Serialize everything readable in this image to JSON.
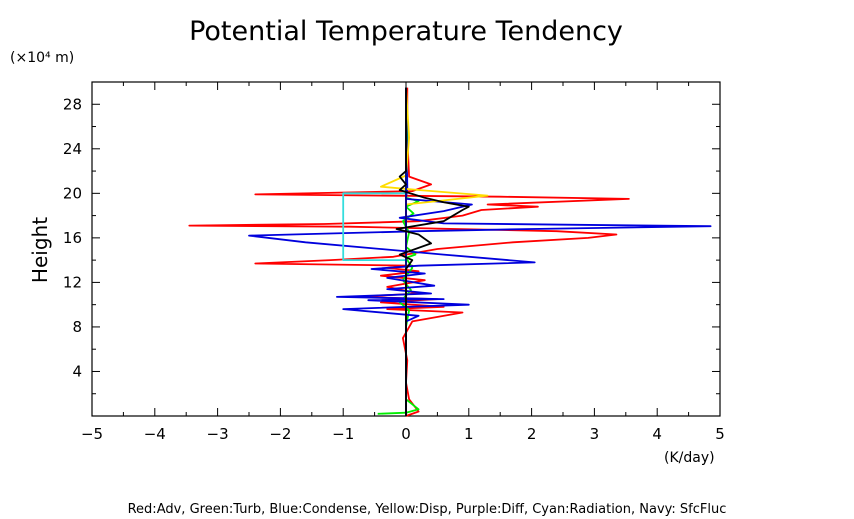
{
  "chart_data": {
    "type": "line",
    "title": "Potential Temperature Tendency",
    "ylabel": "Height",
    "y_unit": "(×10⁴ m)",
    "xlabel": "(K/day)",
    "xlim": [
      -5,
      5
    ],
    "ylim": [
      0,
      30
    ],
    "x_ticks": [
      "−5",
      "−4",
      "−3",
      "−2",
      "−1",
      "0",
      "1",
      "2",
      "3",
      "4",
      "5"
    ],
    "y_ticks": [
      "4",
      "8",
      "12",
      "16",
      "20",
      "24",
      "28"
    ],
    "grid": false,
    "legend_text": "Red:Adv, Green:Turb, Blue:Condense, Yellow:Disp, Purple:Diff, Cyan:Radiation, Navy: SfcFluc",
    "series": [
      {
        "name": "Red:Adv",
        "color": "#ff0000",
        "points": [
          [
            0.0,
            0
          ],
          [
            0.2,
            0.4
          ],
          [
            0.05,
            1.5
          ],
          [
            0.0,
            3
          ],
          [
            0.02,
            5
          ],
          [
            -0.05,
            7
          ],
          [
            0.1,
            8.5
          ],
          [
            0.9,
            9.3
          ],
          [
            -0.3,
            9.6
          ],
          [
            0.6,
            9.8
          ],
          [
            -0.4,
            10.2
          ],
          [
            0.5,
            10.5
          ],
          [
            -0.8,
            10.7
          ],
          [
            0.2,
            11
          ],
          [
            -0.3,
            11.6
          ],
          [
            0.3,
            12.2
          ],
          [
            -0.4,
            12.6
          ],
          [
            0.2,
            13.0
          ],
          [
            -0.3,
            13.3
          ],
          [
            0.1,
            13.5
          ],
          [
            -2.4,
            13.7
          ],
          [
            -1.2,
            14.0
          ],
          [
            -0.2,
            14.3
          ],
          [
            0.5,
            15.0
          ],
          [
            1.7,
            15.6
          ],
          [
            2.9,
            16.0
          ],
          [
            3.35,
            16.3
          ],
          [
            2.4,
            16.6
          ],
          [
            0.8,
            16.8
          ],
          [
            -0.9,
            17.0
          ],
          [
            -3.45,
            17.1
          ],
          [
            -1.3,
            17.25
          ],
          [
            0.2,
            17.5
          ],
          [
            0.9,
            18.0
          ],
          [
            1.2,
            18.5
          ],
          [
            2.1,
            18.8
          ],
          [
            1.3,
            19.0
          ],
          [
            3.55,
            19.5
          ],
          [
            1.5,
            19.7
          ],
          [
            -2.4,
            19.9
          ],
          [
            0.1,
            20.2
          ],
          [
            0.4,
            20.8
          ],
          [
            0.2,
            21.2
          ],
          [
            0.05,
            21.5
          ],
          [
            0.02,
            25
          ],
          [
            0.02,
            29.5
          ]
        ]
      },
      {
        "name": "Green:Turb",
        "color": "#00ee00",
        "points": [
          [
            -0.45,
            0.2
          ],
          [
            0.0,
            0.3
          ],
          [
            0.2,
            0.6
          ],
          [
            0.0,
            1.5
          ],
          [
            0.0,
            8
          ],
          [
            0.05,
            9.5
          ],
          [
            -0.1,
            10.2
          ],
          [
            0.08,
            11.3
          ],
          [
            -0.05,
            12.2
          ],
          [
            0.1,
            13.3
          ],
          [
            0.0,
            14.2
          ],
          [
            0.15,
            14.5
          ],
          [
            0.0,
            15.2
          ],
          [
            0.05,
            16.5
          ],
          [
            -0.05,
            17.5
          ],
          [
            0.12,
            18.2
          ],
          [
            0.0,
            18.8
          ],
          [
            0.2,
            19.3
          ],
          [
            0.0,
            19.6
          ],
          [
            0.02,
            25
          ],
          [
            0.0,
            29.5
          ]
        ]
      },
      {
        "name": "Blue:Condense",
        "color": "#0000dd",
        "points": [
          [
            0.0,
            0
          ],
          [
            0.0,
            8.5
          ],
          [
            0.2,
            9.0
          ],
          [
            -1.0,
            9.6
          ],
          [
            1.0,
            10.0
          ],
          [
            -0.6,
            10.4
          ],
          [
            0.6,
            10.5
          ],
          [
            -1.1,
            10.7
          ],
          [
            0.4,
            11.0
          ],
          [
            -0.3,
            11.4
          ],
          [
            0.45,
            11.7
          ],
          [
            -0.3,
            12.4
          ],
          [
            0.3,
            12.8
          ],
          [
            -0.55,
            13.2
          ],
          [
            0.2,
            13.5
          ],
          [
            2.05,
            13.8
          ],
          [
            0.6,
            14.5
          ],
          [
            -1.6,
            15.6
          ],
          [
            -2.5,
            16.2
          ],
          [
            0.2,
            16.6
          ],
          [
            2.0,
            16.8
          ],
          [
            4.85,
            17.05
          ],
          [
            0.6,
            17.3
          ],
          [
            -0.1,
            17.8
          ],
          [
            0.6,
            18.4
          ],
          [
            1.05,
            19.0
          ],
          [
            0.0,
            19.5
          ],
          [
            0.02,
            20.5
          ],
          [
            0.0,
            29.5
          ]
        ]
      },
      {
        "name": "Yellow:Disp",
        "color": "#ffdd00",
        "points": [
          [
            0.0,
            0
          ],
          [
            0.0,
            19.0
          ],
          [
            1.3,
            19.8
          ],
          [
            0.2,
            20.3
          ],
          [
            -0.4,
            20.6
          ],
          [
            0.0,
            21.6
          ],
          [
            0.05,
            25
          ],
          [
            0.0,
            29.5
          ]
        ]
      },
      {
        "name": "Purple:Diff",
        "color": "#aa00aa",
        "points": [
          [
            0.0,
            0
          ],
          [
            0.0,
            29.5
          ]
        ]
      },
      {
        "name": "Cyan:Radiation",
        "color": "#33dddd",
        "points": [
          [
            0.0,
            0
          ],
          [
            0.0,
            14.0
          ],
          [
            -1.0,
            14.0
          ],
          [
            -1.0,
            20.0
          ],
          [
            0.0,
            20.0
          ],
          [
            0.0,
            29.5
          ]
        ]
      },
      {
        "name": "Navy: SfcFluc",
        "color": "#000080",
        "points": [
          [
            0.0,
            0
          ],
          [
            0.0,
            29.5
          ]
        ]
      },
      {
        "name": "",
        "color": "#000000",
        "points": [
          [
            0.0,
            0
          ],
          [
            0.0,
            13.2
          ],
          [
            0.1,
            14.0
          ],
          [
            -0.1,
            14.5
          ],
          [
            0.4,
            15.5
          ],
          [
            0.2,
            16.3
          ],
          [
            -0.15,
            16.8
          ],
          [
            0.6,
            17.5
          ],
          [
            0.9,
            18.5
          ],
          [
            1.0,
            18.8
          ],
          [
            0.6,
            19.2
          ],
          [
            0.3,
            19.6
          ],
          [
            -0.1,
            20.3
          ],
          [
            0.0,
            20.8
          ],
          [
            -0.1,
            21.5
          ],
          [
            0.0,
            22.0
          ],
          [
            0.0,
            29.5
          ]
        ]
      }
    ]
  }
}
